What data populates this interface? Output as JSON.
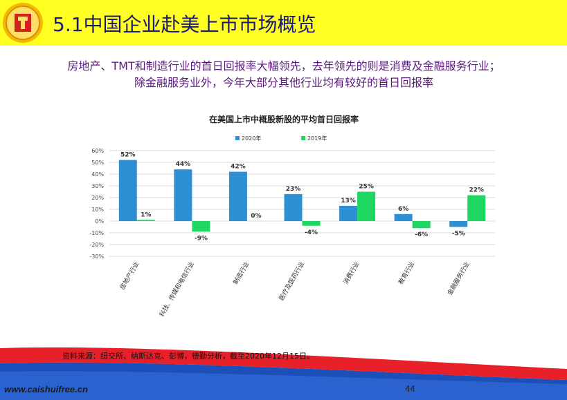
{
  "slide": {
    "title": "5.1中国企业赴美上市市场概览",
    "subtitle_line1": "房地产、TMT和制造行业的首日回报率大幅领先，去年领先的则是消费及金融服务行业；",
    "subtitle_line2": "除金融服务业外，今年大部分其他行业均有较好的首日回报率",
    "source": "资料来源：纽交所、纳斯达克、彭博，德勤分析，截至2020年12月15日。",
    "website": "www.caishuifree.cn",
    "page_number": "44"
  },
  "colors": {
    "header_bg": "#ffff22",
    "series_2020": "#2e8fd3",
    "series_2019": "#1ed760",
    "footer_red": "#e8202a",
    "footer_blue": "#1d4fb8"
  },
  "chart_data": {
    "type": "bar",
    "title": "在美国上市中概股新股的平均首日回报率",
    "categories": [
      "房地产行业",
      "科技、传媒和电信行业",
      "制造行业",
      "医疗及医药行业",
      "消费行业",
      "教育行业",
      "金融服务行业"
    ],
    "series": [
      {
        "name": "2020年",
        "values": [
          52,
          44,
          42,
          23,
          13,
          6,
          -5
        ],
        "labels": [
          "52%",
          "44%",
          "42%",
          "23%",
          "13%",
          "6%",
          "-5%"
        ]
      },
      {
        "name": "2019年",
        "values": [
          1,
          -9,
          0,
          -4,
          25,
          -6,
          22
        ],
        "labels": [
          "1%",
          "-9%",
          "0%",
          "-4%",
          "25%",
          "-6%",
          "22%"
        ]
      }
    ],
    "ylim": [
      -30,
      60
    ],
    "yticks": [
      "60%",
      "50%",
      "40%",
      "30%",
      "20%",
      "10%",
      "0%",
      "-10%",
      "-20%",
      "-30%"
    ],
    "ytick_values": [
      60,
      50,
      40,
      30,
      20,
      10,
      0,
      -10,
      -20,
      -30
    ],
    "grid": true,
    "legend": "top"
  }
}
